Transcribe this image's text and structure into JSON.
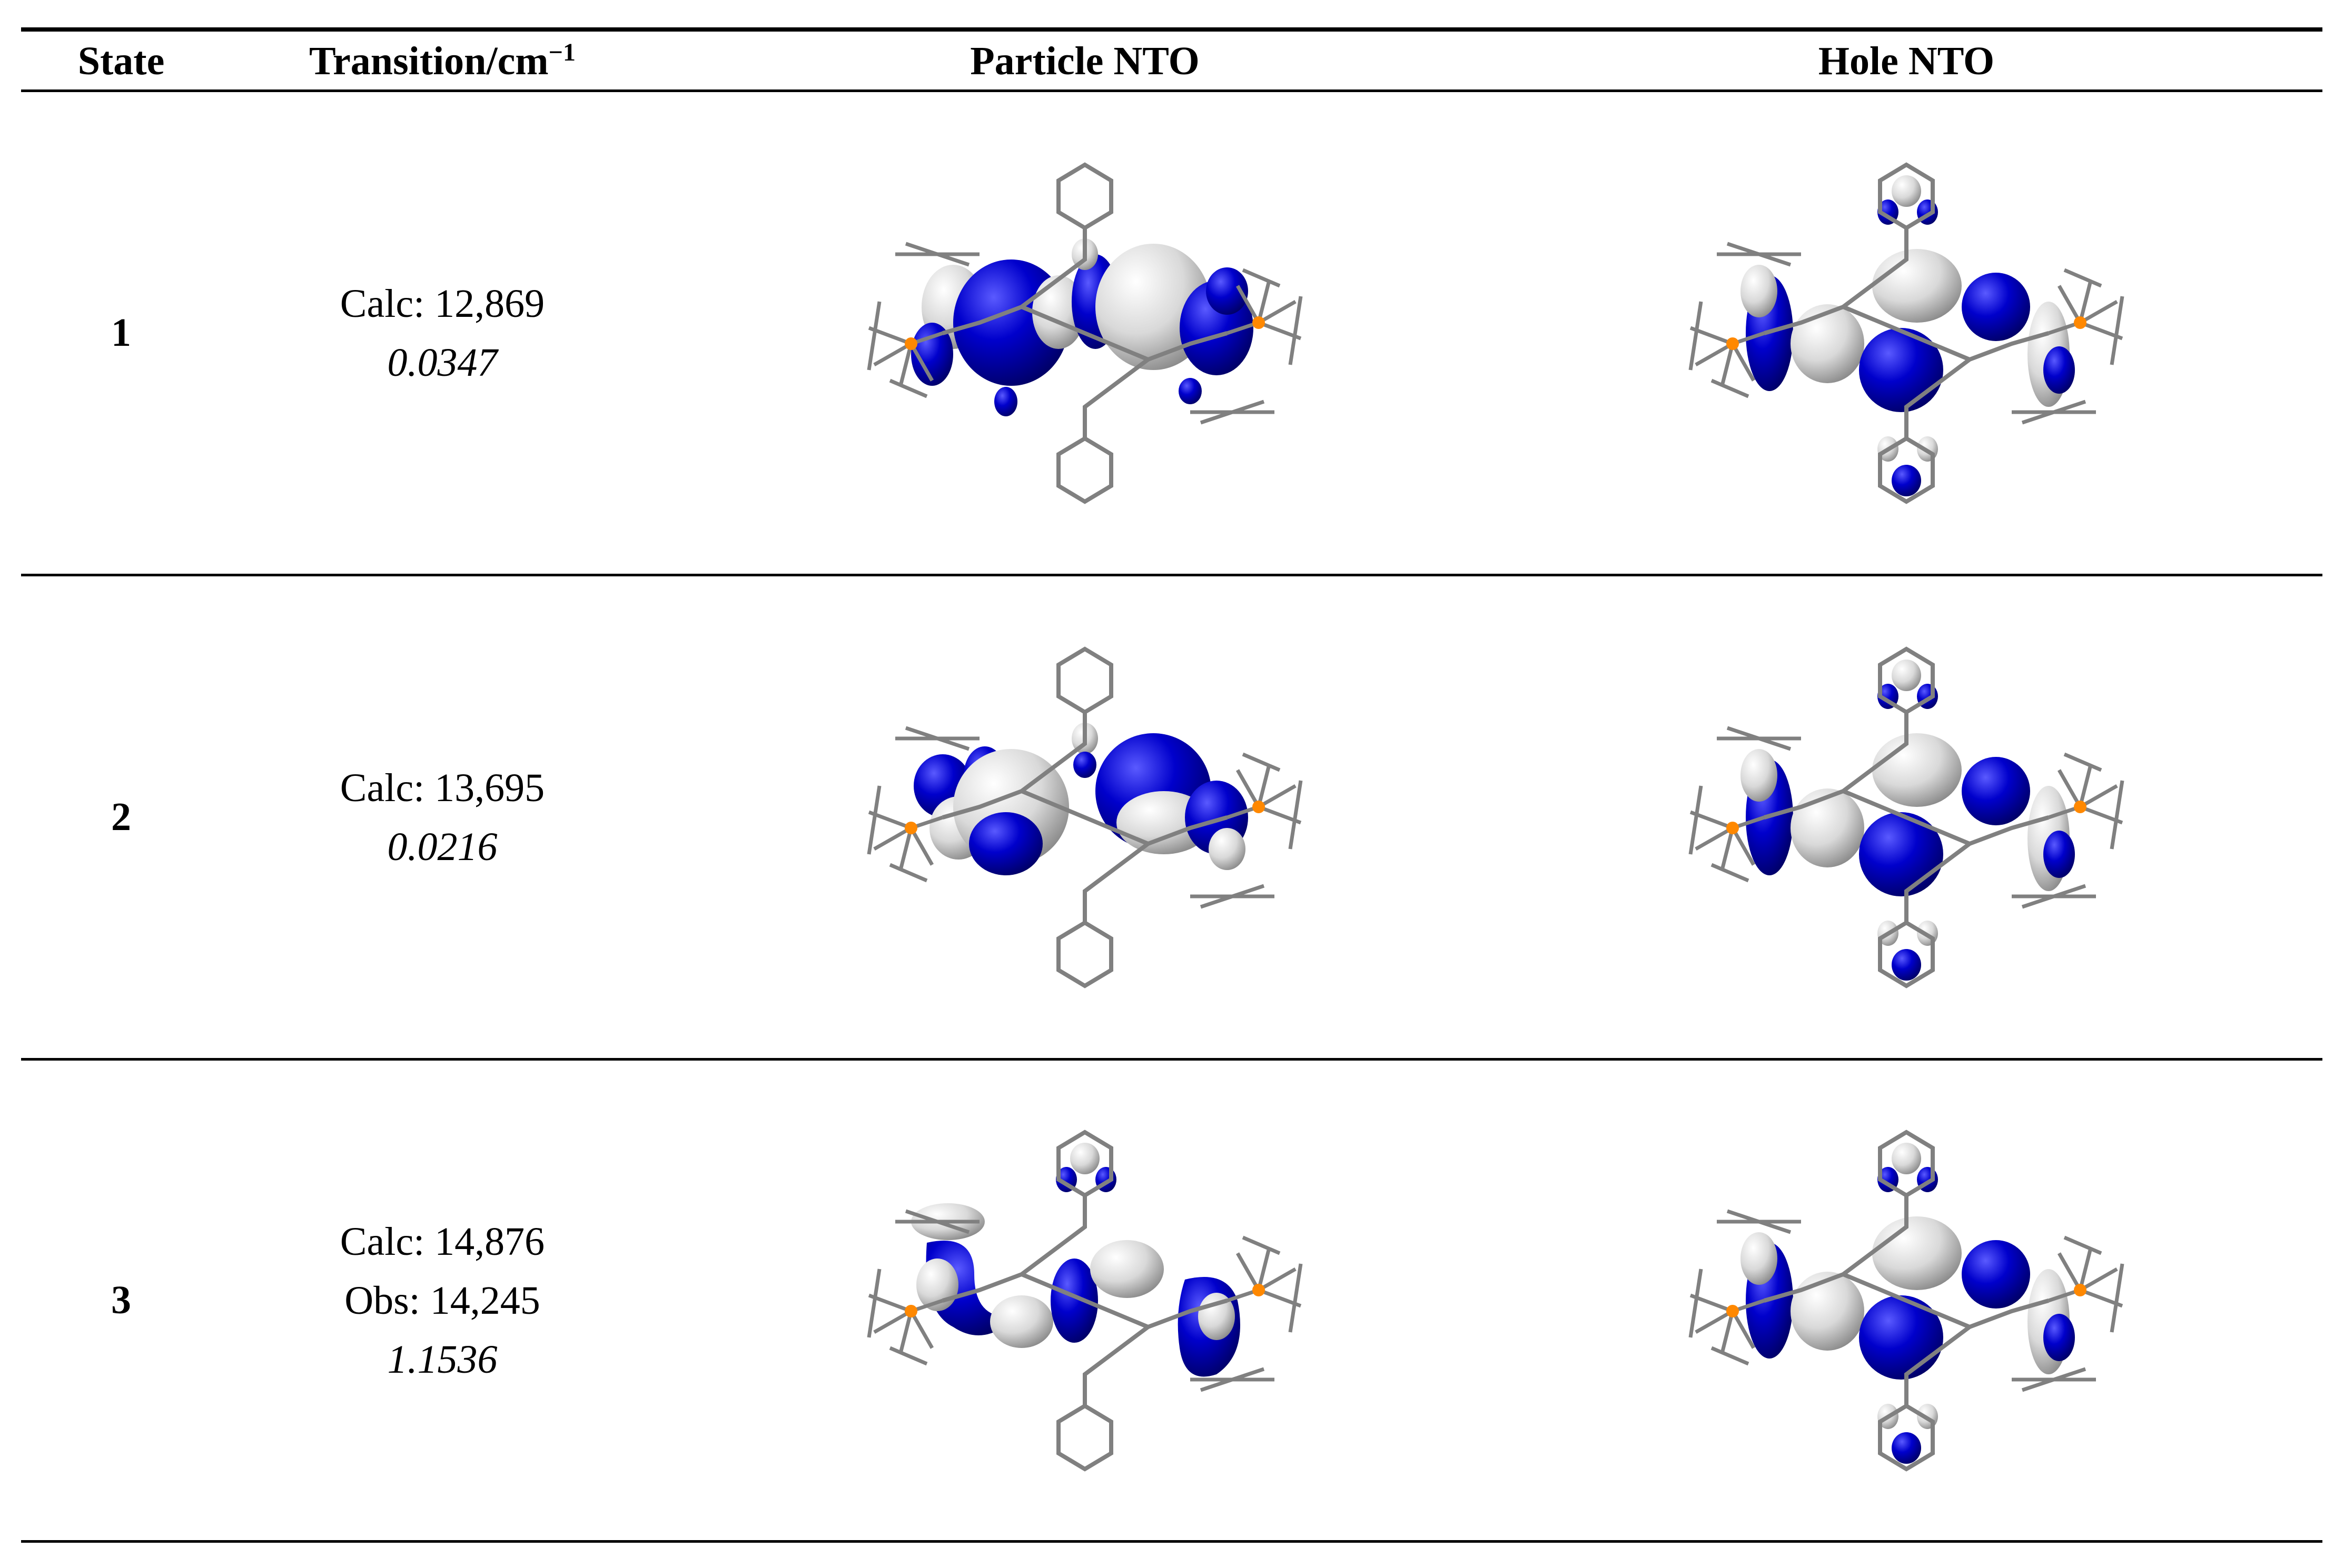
{
  "header": {
    "state": "State",
    "transition": "Transition/cm",
    "transition_sup": "−1",
    "particle": "Particle NTO",
    "hole": "Hole NTO"
  },
  "rows": [
    {
      "state": "1",
      "calc": "Calc: 12,869",
      "obs": "",
      "osc": "0.0347"
    },
    {
      "state": "2",
      "calc": "Calc: 13,695",
      "obs": "",
      "osc": "0.0216"
    },
    {
      "state": "3",
      "calc": "Calc: 14,876",
      "obs": "Obs: 14,245",
      "osc": "1.1536"
    }
  ],
  "colors": {
    "lobe_blue": "#0000cc",
    "lobe_white": "#d9d9d9",
    "bond_grey": "#808080",
    "phosphorus": "#ff8800"
  }
}
